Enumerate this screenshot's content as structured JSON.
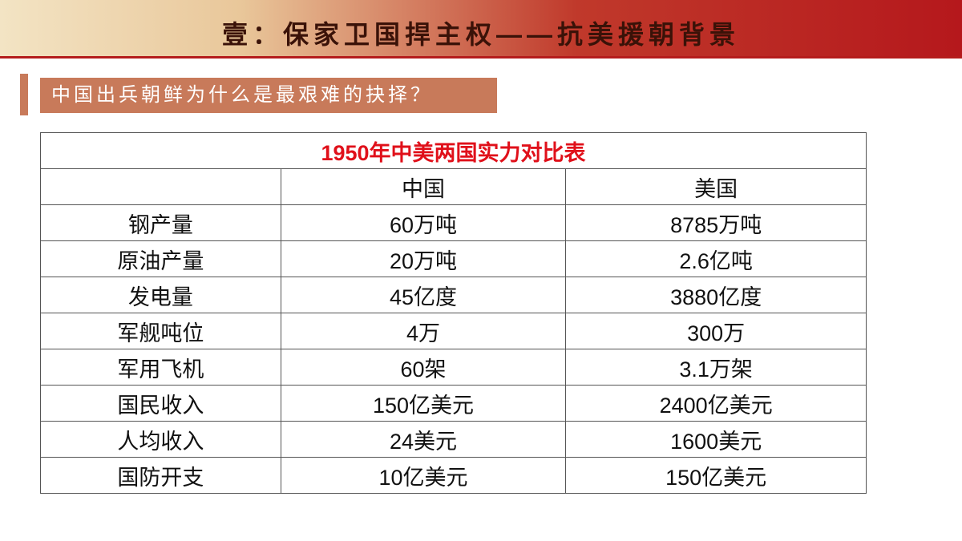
{
  "header": {
    "title": "壹：保家卫国捍主权——抗美援朝背景"
  },
  "subtitle": "中国出兵朝鲜为什么是最艰难的抉择？",
  "table": {
    "title": "1950年中美两国实力对比表",
    "columns": [
      "中国",
      "美国"
    ],
    "rows": [
      [
        "钢产量",
        "60万吨",
        "8785万吨"
      ],
      [
        "原油产量",
        "20万吨",
        "2.6亿吨"
      ],
      [
        "发电量",
        "45亿度",
        "3880亿度"
      ],
      [
        "军舰吨位",
        "4万",
        "300万"
      ],
      [
        "军用飞机",
        "60架",
        "3.1万架"
      ],
      [
        "国民收入",
        "150亿美元",
        "2400亿美元"
      ],
      [
        "人均收入",
        "24美元",
        "1600美元"
      ],
      [
        "国防开支",
        "10亿美元",
        "150亿美元"
      ]
    ]
  }
}
